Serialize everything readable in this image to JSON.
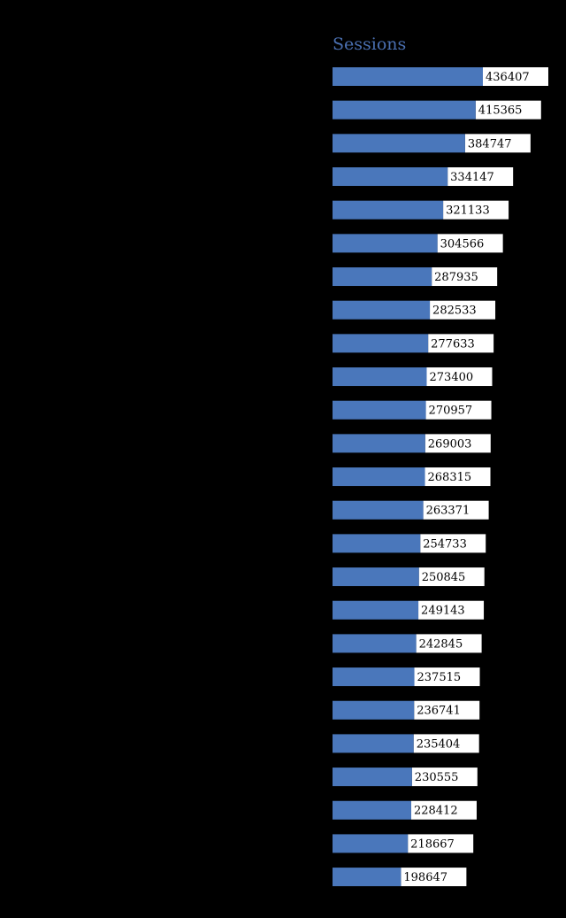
{
  "chart_data": {
    "type": "bar",
    "title": "Sessions",
    "values": [
      436407,
      415365,
      384747,
      334147,
      321133,
      304566,
      287935,
      282533,
      277633,
      273400,
      270957,
      269003,
      268315,
      263371,
      254733,
      250845,
      249143,
      242845,
      237515,
      236741,
      235404,
      230555,
      228412,
      218667,
      198647
    ],
    "color": "#4a77bb"
  }
}
